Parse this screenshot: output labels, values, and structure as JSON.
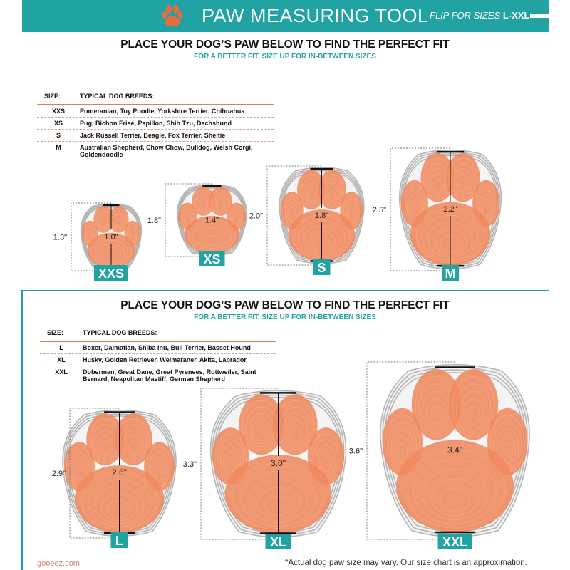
{
  "banner": {
    "title": "PAW MEASURING TOOL",
    "flip_prefix": "FLIP FOR SIZES",
    "flip_sizes": "L-XXL",
    "logo_icon": "paw-icon",
    "arrow_icon": "arrow-right-icon",
    "color": "#22a3a3"
  },
  "sections": [
    {
      "heading": "PLACE YOUR DOG’S PAW BELOW TO FIND THE PERFECT FIT",
      "subheading": "FOR A BETTER FIT, SIZE UP FOR IN-BETWEEN SIZES",
      "table": {
        "headers": [
          "SIZE:",
          "TYPICAL DOG BREEDS:"
        ],
        "rows": [
          {
            "size": "XXS",
            "breeds": "Pomeranian, Toy Poodle, Yorkshire Terrier, Chihuahua"
          },
          {
            "size": "XS",
            "breeds": "Pug, Bichon Frisé, Papillon, Shih Tzu, Dachshund"
          },
          {
            "size": "S",
            "breeds": "Jack Russell Terrier, Beagle, Fox Terrier, Sheltie"
          },
          {
            "size": "M",
            "breeds": "Australian Shepherd, Chow Chow, Bulldog, Welsh Corgi, Goldendoodle"
          }
        ]
      },
      "paws": [
        {
          "size": "XXS",
          "shoe_length": "1.3\"",
          "paw_length": "1.0\""
        },
        {
          "size": "XS",
          "shoe_length": "1.8\"",
          "paw_length": "1.4\""
        },
        {
          "size": "S",
          "shoe_length": "2.0\"",
          "paw_length": "1.8\""
        },
        {
          "size": "M",
          "shoe_length": "2.5\"",
          "paw_length": "2.2\""
        }
      ]
    },
    {
      "heading": "PLACE YOUR DOG’S PAW BELOW TO FIND THE PERFECT FIT",
      "subheading": "FOR A BETTER FIT, SIZE UP FOR IN-BETWEEN SIZES",
      "table": {
        "headers": [
          "SIZE:",
          "TYPICAL DOG BREEDS:"
        ],
        "rows": [
          {
            "size": "L",
            "breeds": "Boxer, Dalmatian, Shiba Inu, Bull Terrier, Basset Hound"
          },
          {
            "size": "XL",
            "breeds": "Husky, Golden Retriever, Weimaraner, Akita, Labrador"
          },
          {
            "size": "XXL",
            "breeds": "Doberman, Great Dane, Great Pyrenees, Rottweiler, Saint Bernard, Neapolitan Mastiff, German Shepherd"
          }
        ]
      },
      "paws": [
        {
          "size": "L",
          "shoe_length": "2.9\"",
          "paw_length": "2.6\""
        },
        {
          "size": "XL",
          "shoe_length": "3.3\"",
          "paw_length": "3.0\""
        },
        {
          "size": "XXL",
          "shoe_length": "3.6\"",
          "paw_length": "3.4\""
        }
      ]
    }
  ],
  "colors": {
    "teal": "#22a3a3",
    "paw_orange": "#ef8a5e",
    "shoe_gray": "#b5b5b5",
    "rule_orange": "#e07f5a"
  },
  "footer": {
    "website": "gooeez.com",
    "disclaimer": "*Actual dog paw size may vary. Our size chart is an approximation."
  }
}
